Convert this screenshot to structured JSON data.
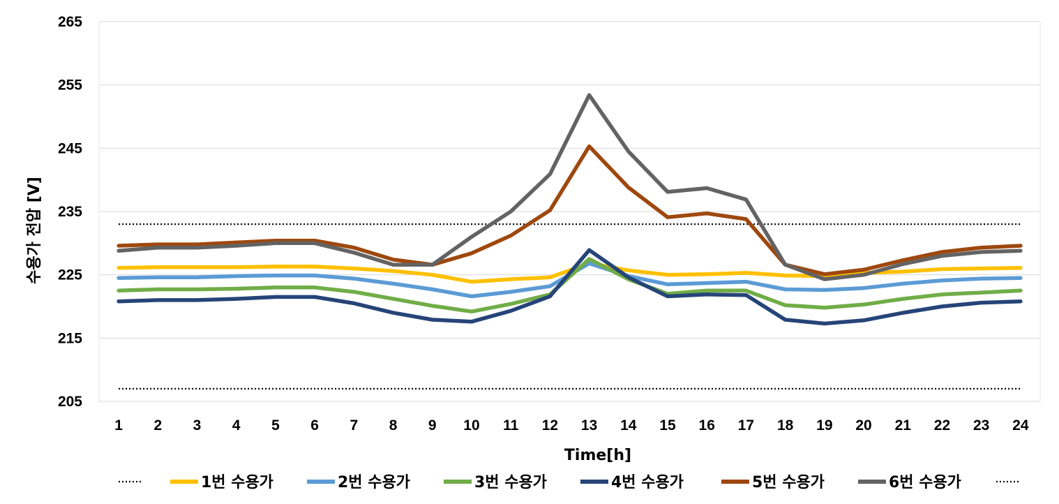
{
  "chart_data": {
    "type": "line",
    "xlabel": "Time[h]",
    "ylabel": "수용가 전압 [V]",
    "ylim": [
      205,
      265
    ],
    "yticks": [
      "205",
      "215",
      "225",
      "235",
      "245",
      "255",
      "265"
    ],
    "categories": [
      "1",
      "2",
      "3",
      "4",
      "5",
      "6",
      "7",
      "8",
      "9",
      "10",
      "11",
      "12",
      "13",
      "14",
      "15",
      "16",
      "17",
      "18",
      "19",
      "20",
      "21",
      "22",
      "23",
      "24"
    ],
    "grid": "horizontal",
    "legend_position": "bottom",
    "limits": [
      {
        "value": 233,
        "style": "dotted",
        "color": "#000000"
      },
      {
        "value": 207,
        "style": "dotted",
        "color": "#000000"
      }
    ],
    "series": [
      {
        "name": "1번 수용가",
        "color": "#FFC000",
        "values": [
          226.1,
          226.2,
          226.2,
          226.2,
          226.3,
          226.3,
          226.0,
          225.6,
          225.0,
          223.9,
          224.3,
          224.6,
          226.8,
          225.7,
          225.0,
          225.1,
          225.3,
          224.9,
          224.8,
          225.3,
          225.5,
          225.9,
          226.0,
          226.1
        ]
      },
      {
        "name": "2번 수용가",
        "color": "#5B9BD5",
        "values": [
          224.5,
          224.6,
          224.6,
          224.8,
          224.9,
          224.9,
          224.4,
          223.6,
          222.7,
          221.6,
          222.3,
          223.2,
          226.8,
          224.8,
          223.5,
          223.7,
          223.9,
          222.7,
          222.6,
          222.9,
          223.6,
          224.1,
          224.4,
          224.5
        ]
      },
      {
        "name": "3번 수용가",
        "color": "#70AD47",
        "values": [
          222.5,
          222.7,
          222.7,
          222.8,
          223.0,
          223.0,
          222.3,
          221.2,
          220.1,
          219.2,
          220.4,
          221.9,
          227.5,
          224.3,
          222.0,
          222.5,
          222.5,
          220.2,
          219.8,
          220.3,
          221.2,
          221.9,
          222.2,
          222.5
        ]
      },
      {
        "name": "4번 수용가",
        "color": "#264478",
        "values": [
          220.8,
          221.0,
          221.0,
          221.2,
          221.5,
          221.5,
          220.5,
          219.0,
          217.9,
          217.6,
          219.3,
          221.6,
          228.9,
          224.6,
          221.6,
          221.9,
          221.8,
          217.9,
          217.3,
          217.8,
          219.0,
          220.0,
          220.6,
          220.8
        ]
      },
      {
        "name": "5번 수용가",
        "color": "#9E480E",
        "values": [
          229.6,
          229.8,
          229.8,
          230.1,
          230.4,
          230.4,
          229.3,
          227.4,
          226.6,
          228.4,
          231.2,
          235.2,
          245.3,
          238.8,
          234.1,
          234.7,
          233.8,
          226.6,
          225.1,
          225.8,
          227.3,
          228.6,
          229.3,
          229.6
        ]
      },
      {
        "name": "6번 수용가",
        "color": "#636363",
        "values": [
          228.8,
          229.3,
          229.3,
          229.6,
          230.0,
          230.0,
          228.5,
          226.6,
          226.6,
          231.0,
          235.0,
          240.9,
          253.4,
          244.5,
          238.1,
          238.7,
          236.9,
          226.6,
          224.3,
          225.0,
          226.7,
          228.0,
          228.6,
          228.8
        ]
      }
    ]
  }
}
